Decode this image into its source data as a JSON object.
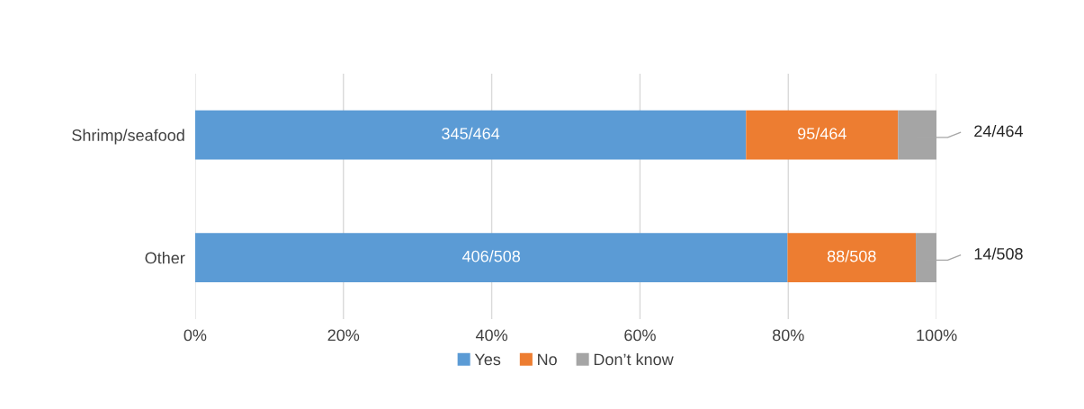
{
  "chart_data": {
    "type": "bar",
    "orientation": "horizontal",
    "stacked": true,
    "categories": [
      "Shrimp/seafood",
      "Other"
    ],
    "series": [
      {
        "name": "Yes",
        "color": "#5b9bd5",
        "values": [
          74.3,
          79.9
        ],
        "value_labels": [
          "345/464",
          "406/508"
        ]
      },
      {
        "name": "No",
        "color": "#ed7d31",
        "values": [
          20.5,
          17.3
        ],
        "value_labels": [
          "95/464",
          "88/508"
        ]
      },
      {
        "name": "Don’t know",
        "color": "#a5a5a5",
        "values": [
          5.2,
          2.8
        ],
        "value_labels": [
          "24/464",
          "14/508"
        ]
      }
    ],
    "xlim": [
      0,
      100
    ],
    "xticks": [
      {
        "value": 0,
        "label": "0%"
      },
      {
        "value": 20,
        "label": "20%"
      },
      {
        "value": 40,
        "label": "40%"
      },
      {
        "value": 60,
        "label": "60%"
      },
      {
        "value": 80,
        "label": "80%"
      },
      {
        "value": 100,
        "label": "100%"
      }
    ],
    "grid": "x",
    "legend": "bottom"
  }
}
